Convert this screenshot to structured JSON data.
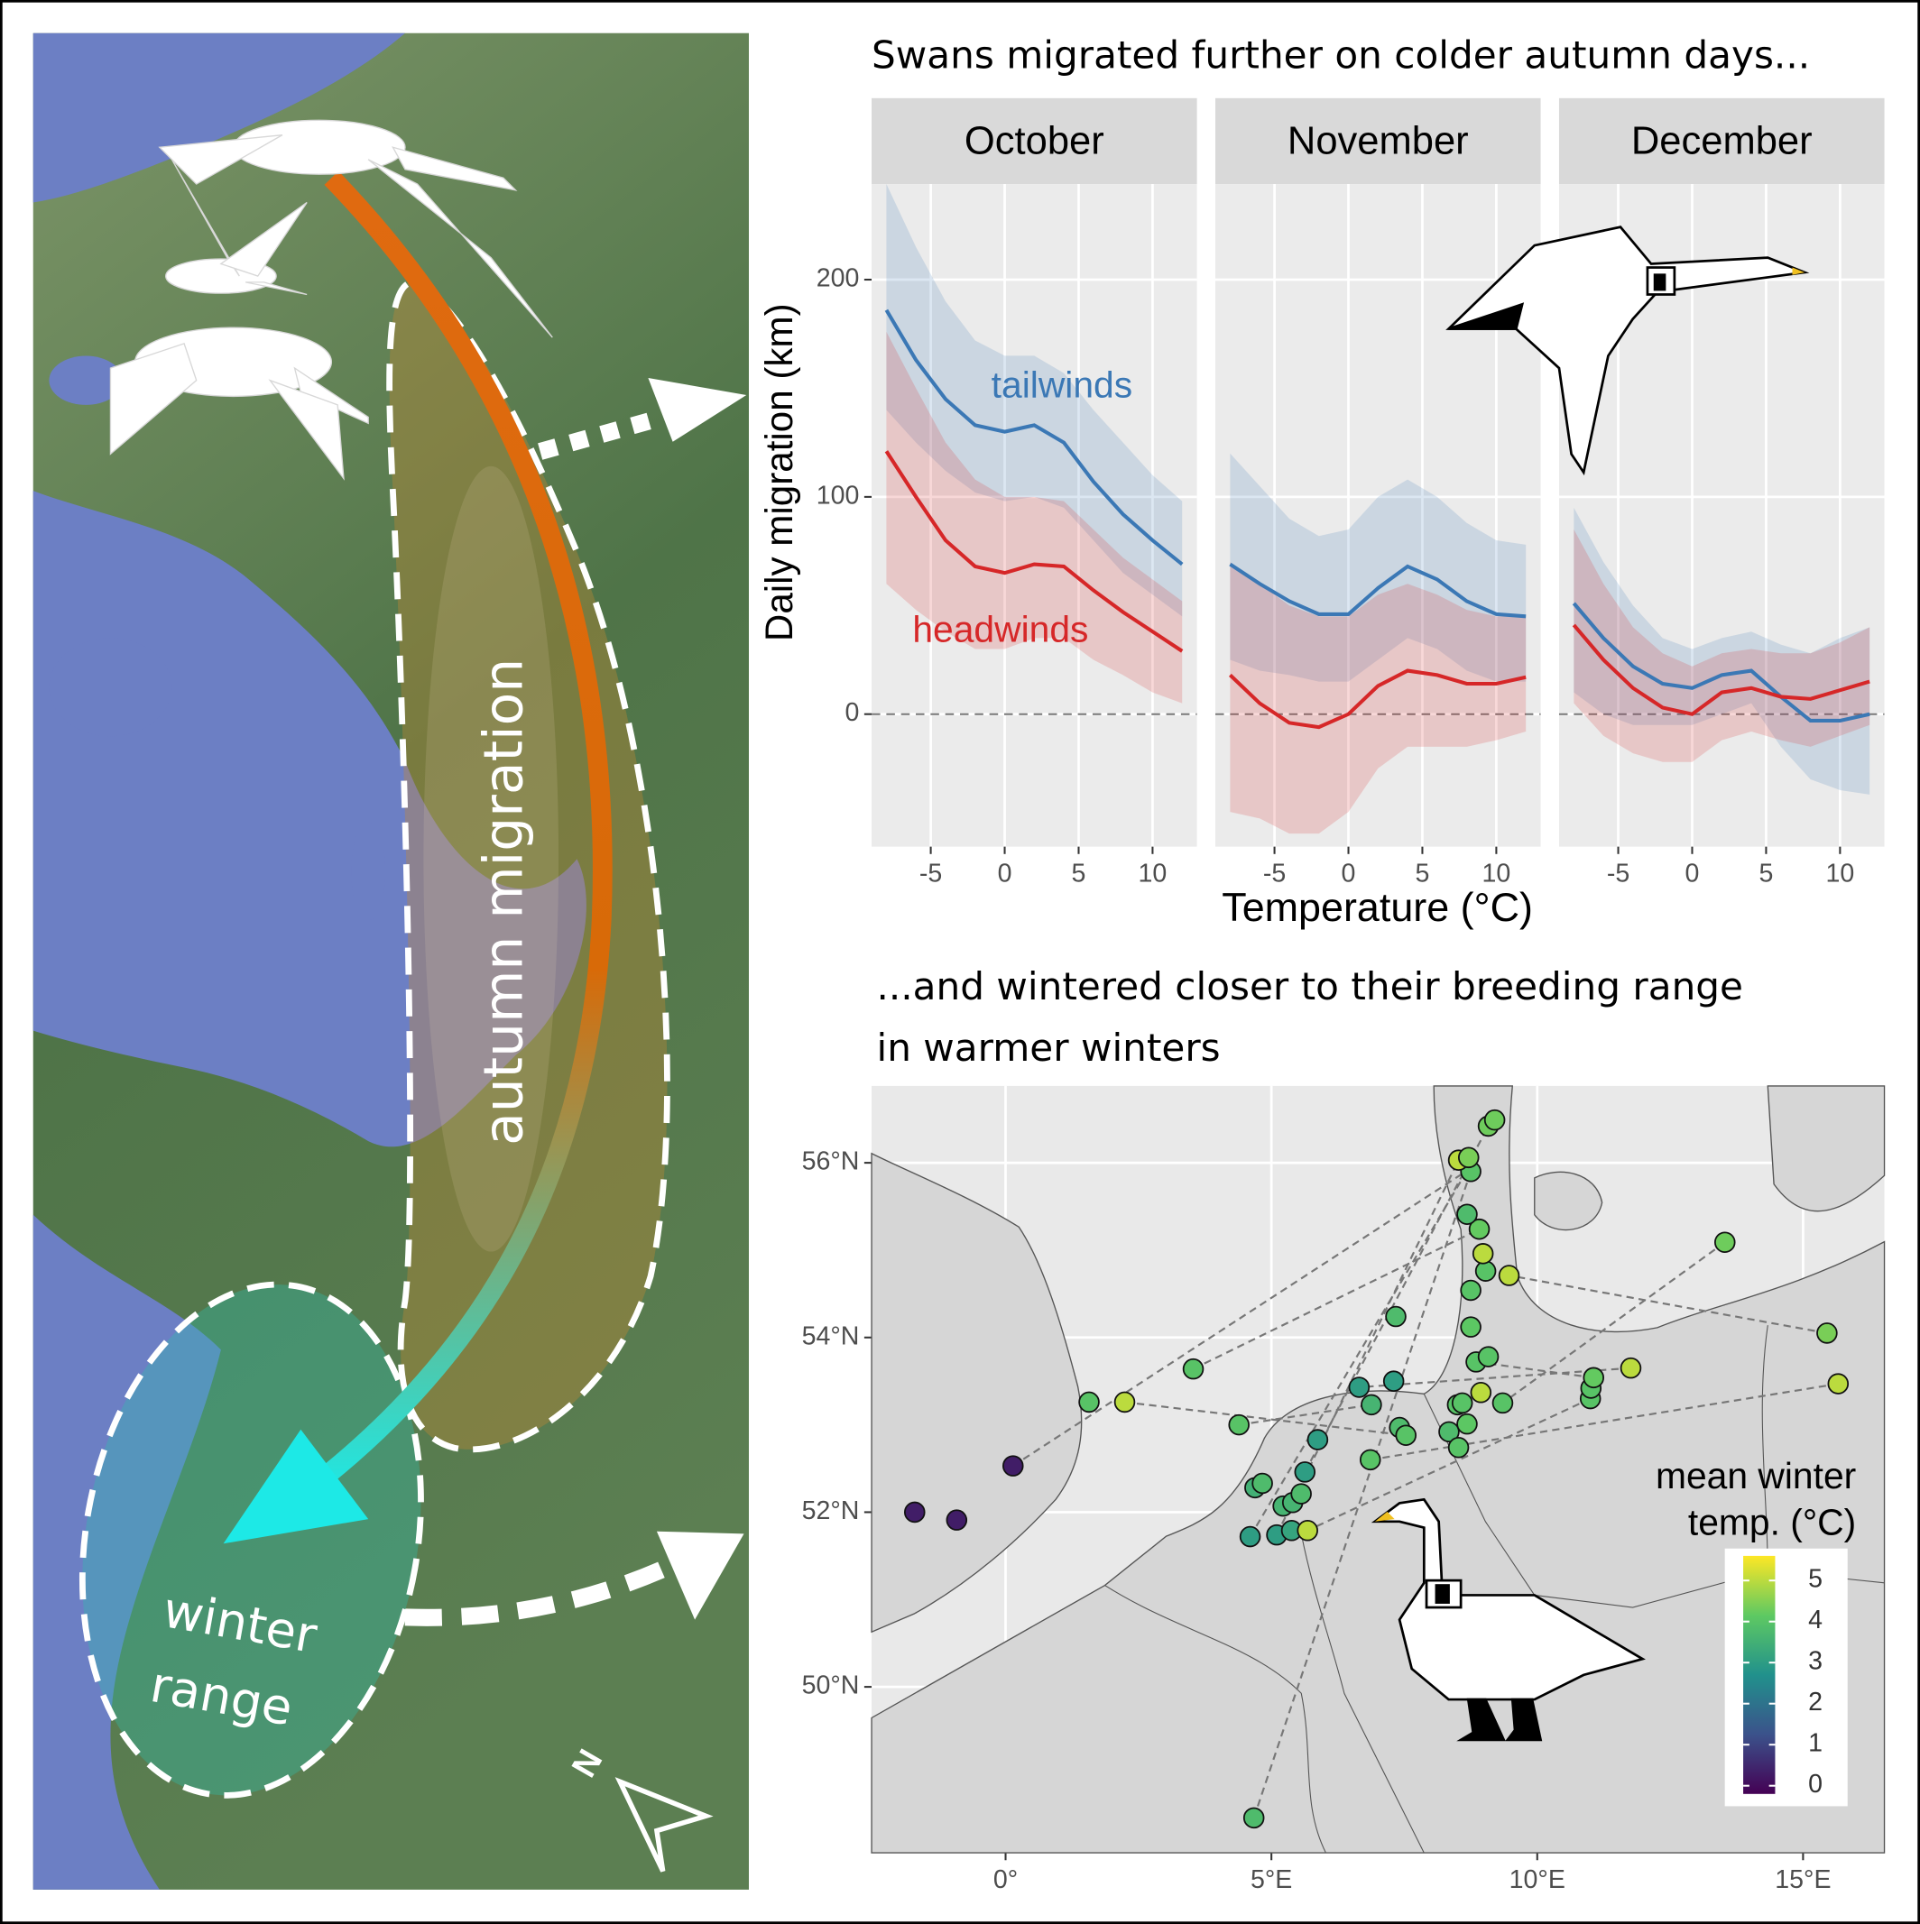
{
  "illustration": {
    "migration_label": "autumn migration",
    "winter_label": [
      "winter",
      "range"
    ],
    "compass": "N"
  },
  "chart_data": [
    {
      "type": "line",
      "title": "Swans migrated further on colder autumn days...",
      "facets": [
        "October",
        "November",
        "December"
      ],
      "x_label": "Temperature (°C)",
      "y_label": "Daily migration (km)",
      "x": [
        -8,
        -6,
        -4,
        -2,
        0,
        2,
        4,
        6,
        8,
        10,
        12
      ],
      "xlim": [
        -9,
        13
      ],
      "ylim": [
        -61,
        244
      ],
      "xticks": [
        -5,
        0,
        5,
        10
      ],
      "yticks": [
        0,
        100,
        200
      ],
      "grid": true,
      "hline": 0,
      "series": [
        {
          "name": "tailwinds",
          "color": "#3b78b5",
          "values": [
            [
              186,
              163,
              145,
              133,
              130,
              133,
              125,
              107,
              92,
              80,
              69
            ],
            [
              69,
              60,
              52,
              46,
              46,
              58,
              68,
              62,
              52,
              46,
              45
            ],
            [
              51,
              35,
              22,
              14,
              12,
              18,
              20,
              8,
              -3,
              -3,
              0
            ]
          ],
          "lower": [
            [
              140,
              125,
              112,
              102,
              98,
              100,
              95,
              80,
              65,
              55,
              45
            ],
            [
              25,
              20,
              18,
              15,
              15,
              25,
              35,
              30,
              20,
              15,
              15
            ],
            [
              10,
              0,
              -5,
              -5,
              -5,
              0,
              5,
              -15,
              -30,
              -35,
              -37
            ]
          ],
          "upper": [
            [
              244,
              215,
              190,
              172,
              165,
              165,
              157,
              140,
              125,
              110,
              98
            ],
            [
              120,
              105,
              90,
              82,
              85,
              100,
              108,
              100,
              88,
              80,
              78
            ],
            [
              95,
              70,
              50,
              35,
              30,
              35,
              38,
              32,
              28,
              35,
              40
            ]
          ]
        },
        {
          "name": "headwinds",
          "color": "#d62728",
          "values": [
            [
              121,
              100,
              80,
              68,
              65,
              69,
              68,
              57,
              47,
              38,
              29
            ],
            [
              18,
              5,
              -4,
              -6,
              0,
              13,
              20,
              18,
              14,
              14,
              17
            ],
            [
              41,
              25,
              12,
              3,
              0,
              10,
              12,
              8,
              7,
              11,
              15
            ]
          ],
          "lower": [
            [
              60,
              48,
              38,
              30,
              30,
              35,
              35,
              25,
              18,
              10,
              5
            ],
            [
              -45,
              -48,
              -55,
              -55,
              -45,
              -25,
              -15,
              -15,
              -15,
              -12,
              -8
            ],
            [
              5,
              -10,
              -18,
              -22,
              -22,
              -12,
              -8,
              -12,
              -15,
              -10,
              -5
            ]
          ],
          "upper": [
            [
              176,
              150,
              125,
              108,
              100,
              100,
              98,
              85,
              72,
              62,
              52
            ],
            [
              70,
              60,
              50,
              45,
              45,
              55,
              60,
              55,
              48,
              45,
              45
            ],
            [
              85,
              60,
              40,
              28,
              22,
              28,
              30,
              28,
              28,
              33,
              40
            ]
          ]
        }
      ]
    },
    {
      "type": "scatter",
      "title": [
        "...and wintered closer to their breeding range",
        "in warmer winters"
      ],
      "xlim": [
        -2.52,
        16.53
      ],
      "ylim": [
        48.1,
        56.88
      ],
      "xticks": [
        {
          "value": 0,
          "label": "0°"
        },
        {
          "value": 5,
          "label": "5°E"
        },
        {
          "value": 10,
          "label": "10°E"
        },
        {
          "value": 15,
          "label": "15°E"
        }
      ],
      "yticks": [
        {
          "value": 50,
          "label": "50°N"
        },
        {
          "value": 52,
          "label": "52°N"
        },
        {
          "value": 54,
          "label": "54°N"
        },
        {
          "value": 56,
          "label": "56°N"
        }
      ],
      "grid": true,
      "x": [
        -1.71,
        -0.92,
        0.14,
        1.57,
        2.24,
        3.53,
        4.39,
        4.69,
        4.83,
        4.6,
        5.1,
        5.38,
        5.68,
        5.22,
        5.4,
        5.56,
        5.63,
        5.87,
        6.65,
        6.88,
        6.86,
        7.3,
        7.34,
        7.41,
        7.53,
        8.34,
        8.5,
        8.52,
        8.68,
        8.59,
        8.85,
        9.08,
        8.94,
        9.35,
        8.75,
        8.75,
        9.03,
        8.98,
        9.47,
        8.91,
        8.68,
        8.75,
        8.52,
        8.71,
        9.08,
        9.2,
        11.0,
        11.01,
        11.06,
        11.76,
        13.53,
        15.45,
        15.66,
        4.67
      ],
      "y": [
        52.0,
        51.91,
        52.53,
        53.26,
        53.26,
        53.64,
        53.0,
        52.28,
        52.33,
        51.72,
        51.74,
        51.79,
        51.79,
        52.07,
        52.11,
        52.21,
        52.46,
        52.83,
        53.43,
        53.23,
        52.6,
        53.5,
        54.24,
        52.97,
        52.88,
        52.92,
        53.23,
        52.74,
        53.01,
        53.25,
        53.72,
        53.78,
        53.37,
        53.25,
        54.12,
        54.54,
        54.76,
        54.96,
        54.71,
        55.24,
        55.41,
        55.9,
        56.03,
        56.06,
        56.42,
        56.49,
        53.3,
        53.42,
        53.54,
        53.65,
        55.09,
        54.05,
        53.47,
        48.5
      ],
      "color_values": [
        0.3,
        0.3,
        0.3,
        4,
        5,
        4,
        4,
        3.5,
        3.8,
        3,
        3,
        3.2,
        5,
        3.6,
        3.6,
        3.8,
        3,
        3,
        3,
        3.6,
        4,
        3,
        3.8,
        3.8,
        4,
        3.8,
        4,
        4,
        4.1,
        4,
        4,
        4,
        5,
        4,
        4.1,
        4,
        4,
        5,
        5,
        4.2,
        3.8,
        4,
        5,
        4.4,
        4.3,
        4.3,
        4,
        4,
        4.2,
        5,
        4.3,
        4.4,
        5,
        3.8
      ],
      "colormap": "viridis",
      "color_lim": [
        -0.2,
        5.6
      ],
      "color_ticks": [
        0,
        1,
        2,
        3,
        4,
        5
      ],
      "color_title": [
        "mean winter",
        "temp. (°C)"
      ],
      "links": [
        {
          "x": [
            0.14,
            8.68
          ],
          "y": [
            52.53,
            55.91
          ]
        },
        {
          "x": [
            2.24,
            7.53
          ],
          "y": [
            53.26,
            52.88
          ]
        },
        {
          "x": [
            3.53,
            8.91
          ],
          "y": [
            53.64,
            55.24
          ]
        },
        {
          "x": [
            4.39,
            6.88
          ],
          "y": [
            53.0,
            53.23
          ]
        },
        {
          "x": [
            4.67,
            8.75
          ],
          "y": [
            48.5,
            55.9
          ]
        },
        {
          "x": [
            4.6,
            8.68
          ],
          "y": [
            51.72,
            55.91
          ]
        },
        {
          "x": [
            5.1,
            8.52
          ],
          "y": [
            51.74,
            56.03
          ]
        },
        {
          "x": [
            5.63,
            9.08
          ],
          "y": [
            52.46,
            56.42
          ]
        },
        {
          "x": [
            13.53,
            9.35
          ],
          "y": [
            55.09,
            53.25
          ]
        },
        {
          "x": [
            15.45,
            9.47
          ],
          "y": [
            54.05,
            54.71
          ]
        },
        {
          "x": [
            15.66,
            6.86
          ],
          "y": [
            53.47,
            52.6
          ]
        },
        {
          "x": [
            11.06,
            8.85
          ],
          "y": [
            53.54,
            53.72
          ]
        },
        {
          "x": [
            11.76,
            6.65
          ],
          "y": [
            53.65,
            53.43
          ]
        },
        {
          "x": [
            11.0,
            5.68
          ],
          "y": [
            53.3,
            51.79
          ]
        }
      ]
    }
  ]
}
